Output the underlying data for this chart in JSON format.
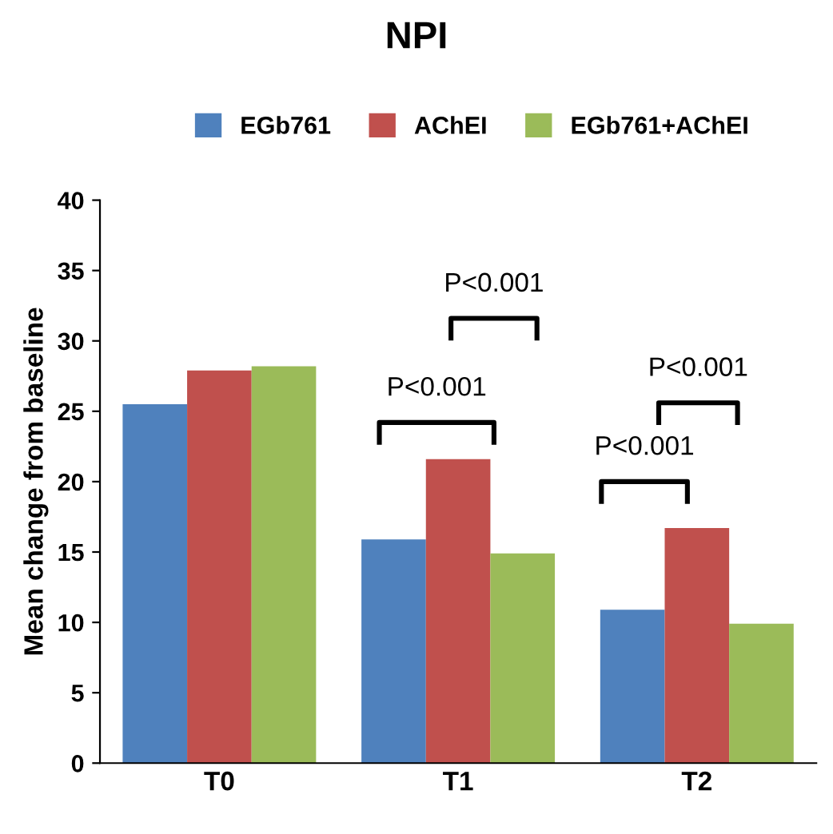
{
  "chart_data": {
    "type": "bar",
    "title": "NPI",
    "ylabel": "Mean change from baseline",
    "categories": [
      "T0",
      "T1",
      "T2"
    ],
    "series": [
      {
        "name": "EGb761",
        "color": "#4f81bd",
        "values": [
          25.5,
          15.9,
          10.9
        ]
      },
      {
        "name": "AChEI",
        "color": "#c0504d",
        "values": [
          27.9,
          21.6,
          16.7
        ]
      },
      {
        "name": "EGb761+AChEI",
        "color": "#9bbb59",
        "values": [
          28.2,
          14.9,
          9.9
        ]
      }
    ],
    "ylim": [
      0,
      40
    ],
    "yticks": [
      0,
      5,
      10,
      15,
      20,
      25,
      30,
      35,
      40
    ],
    "legend": "top",
    "grid": false,
    "annotations": [
      "P<0.001",
      "P<0.001",
      "P<0.001",
      "P<0.001"
    ]
  }
}
